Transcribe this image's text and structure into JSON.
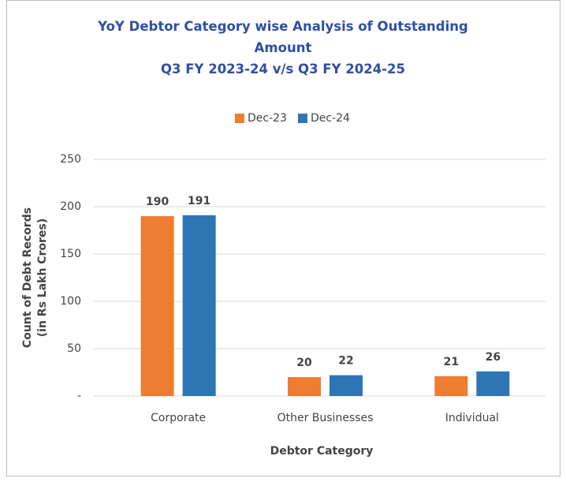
{
  "chart_data": {
    "type": "bar",
    "title": "YoY Debtor Category wise Analysis of Outstanding Amount",
    "subtitle": "Q3 FY 2023-24 v/s Q3 FY 2024-25",
    "xlabel": "Debtor Category",
    "ylabel": [
      "Count of Debt Records",
      "(in Rs Lakh Crores)"
    ],
    "categories": [
      "Corporate",
      "Other Businesses",
      "Individual"
    ],
    "series": [
      {
        "name": "Dec-23",
        "color": "#ed7d31",
        "values": [
          190,
          20,
          21
        ]
      },
      {
        "name": "Dec-24",
        "color": "#2e75b6",
        "values": [
          191,
          22,
          26
        ]
      }
    ],
    "ylim": [
      0,
      250
    ],
    "yticks": [
      {
        "value": 0,
        "label": "-"
      },
      50,
      100,
      150,
      200,
      250
    ],
    "grid": true,
    "legend": "top"
  }
}
